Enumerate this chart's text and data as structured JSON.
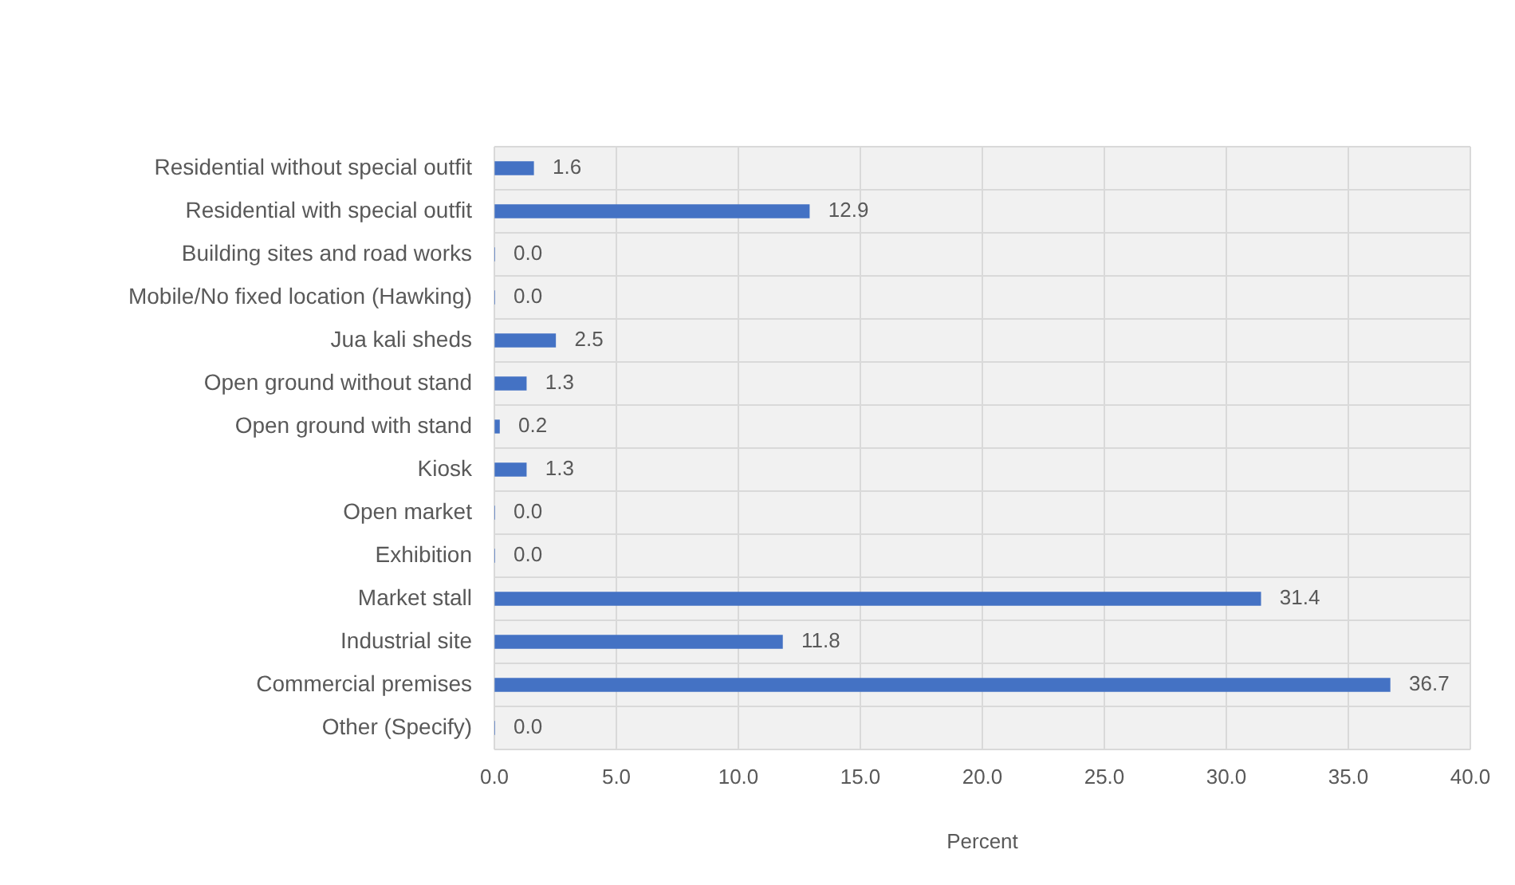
{
  "chart_data": {
    "type": "bar",
    "orientation": "horizontal",
    "xlabel": "Percent",
    "categories": [
      "Residential without special outfit",
      "Residential with special outfit",
      "Building sites and road works",
      "Mobile/No fixed location (Hawking)",
      "Jua kali sheds",
      "Open ground without stand",
      "Open ground with stand",
      "Kiosk",
      "Open market",
      "Exhibition",
      "Market stall",
      "Industrial site",
      "Commercial premises",
      "Other (Specify)"
    ],
    "values": [
      1.6,
      12.9,
      0.0,
      0.0,
      2.5,
      1.3,
      0.2,
      1.3,
      0.0,
      0.0,
      31.4,
      11.8,
      36.7,
      0.0
    ],
    "value_labels": [
      "1.6",
      "12.9",
      "0.0",
      "0.0",
      "2.5",
      "1.3",
      "0.2",
      "1.3",
      "0.0",
      "0.0",
      "31.4",
      "11.8",
      "36.7",
      "0.0"
    ],
    "color": "#4472c4",
    "xlim": [
      0,
      40
    ],
    "xticks": [
      {
        "value": 0,
        "label": "0.0"
      },
      {
        "value": 5,
        "label": "5.0"
      },
      {
        "value": 10,
        "label": "10.0"
      },
      {
        "value": 15,
        "label": "15.0"
      },
      {
        "value": 20,
        "label": "20.0"
      },
      {
        "value": 25,
        "label": "25.0"
      },
      {
        "value": 30,
        "label": "30.0"
      },
      {
        "value": 35,
        "label": "35.0"
      },
      {
        "value": 40,
        "label": "40.0"
      }
    ],
    "grid": true,
    "legend": false
  }
}
